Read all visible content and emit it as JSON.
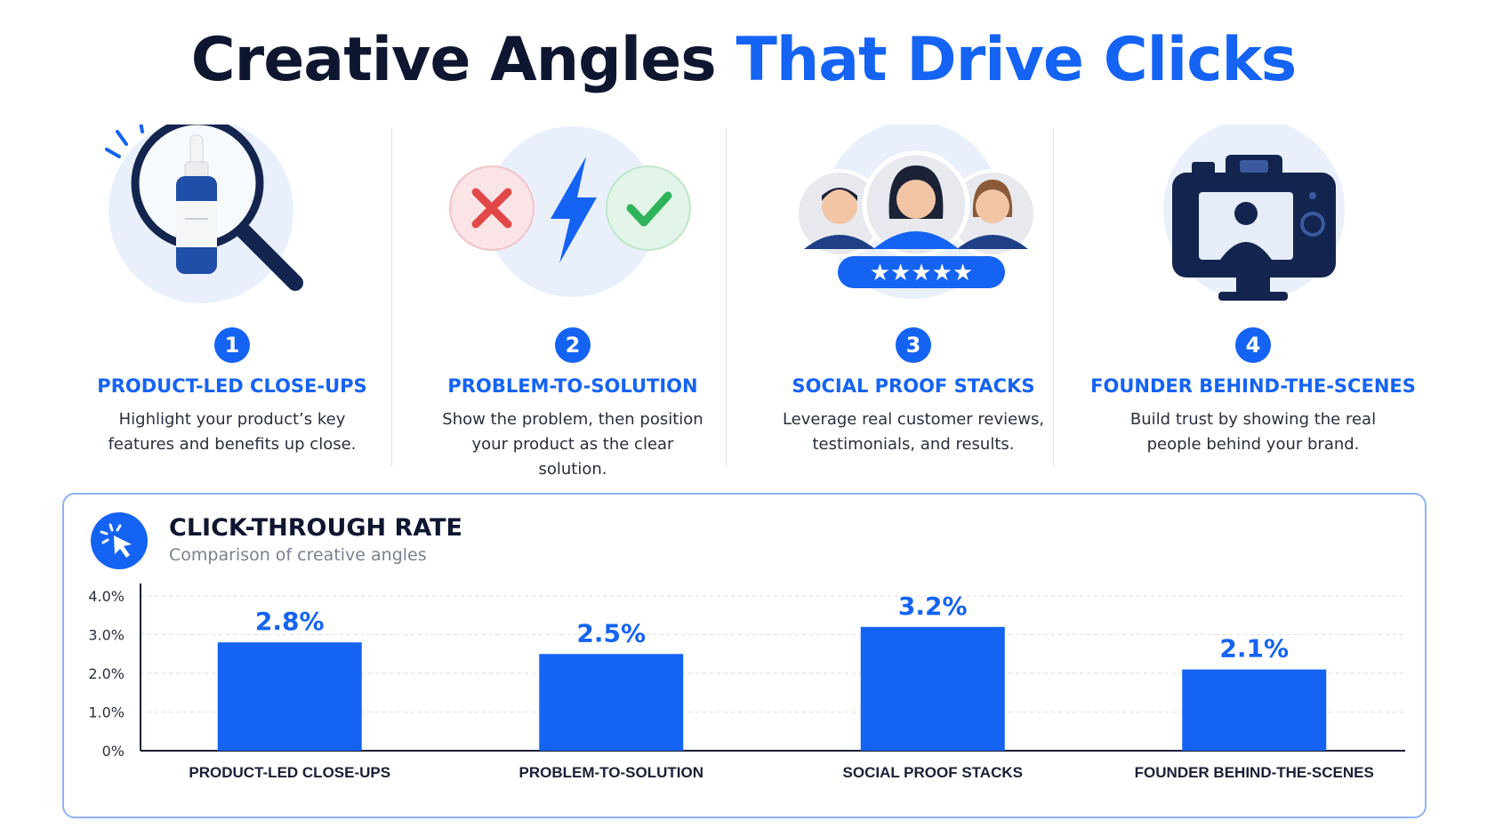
{
  "header": {
    "title_main": "Creative Angles",
    "title_accent": "That Drive Clicks"
  },
  "colors": {
    "accent": "#1463f3",
    "dark_navy": "#0f1630",
    "error_red": "#e04848",
    "success_green": "#2fb35a"
  },
  "angles": [
    {
      "number": "1",
      "title": "PRODUCT-LED CLOSE-UPS",
      "description": "Highlight your product’s key features and benefits up close.",
      "icon": "magnifier-bottle-icon"
    },
    {
      "number": "2",
      "title": "PROBLEM-TO-SOLUTION",
      "description": "Show the problem, then position your product as the clear solution.",
      "icon": "problem-solution-icon"
    },
    {
      "number": "3",
      "title": "SOCIAL PROOF STACKS",
      "description": "Leverage real customer reviews, testimonials, and results.",
      "icon": "customer-reviews-icon"
    },
    {
      "number": "4",
      "title": "FOUNDER BEHIND-THE-SCENES",
      "description": "Build trust by showing the real people behind your brand.",
      "icon": "camera-icon"
    }
  ],
  "chart_card": {
    "title": "CLICK-THROUGH RATE",
    "subtitle": "Comparison of creative angles",
    "icon": "cursor-click-icon"
  },
  "chart_data": {
    "type": "bar",
    "title": "CLICK-THROUGH RATE",
    "subtitle": "Comparison of creative angles",
    "categories": [
      "PRODUCT-LED CLOSE-UPS",
      "PROBLEM-TO-SOLUTION",
      "SOCIAL PROOF STACKS",
      "FOUNDER BEHIND-THE-SCENES"
    ],
    "values": [
      2.8,
      2.5,
      3.2,
      2.1
    ],
    "value_labels": [
      "2.8%",
      "2.5%",
      "3.2%",
      "2.1%"
    ],
    "ylim": [
      0,
      4.0
    ],
    "yticks": [
      0,
      1.0,
      2.0,
      3.0,
      4.0
    ],
    "ytick_labels": [
      "0%",
      "1.0%",
      "2.0%",
      "3.0%",
      "4.0%"
    ],
    "grid": true,
    "bar_color": "#1463f3"
  }
}
